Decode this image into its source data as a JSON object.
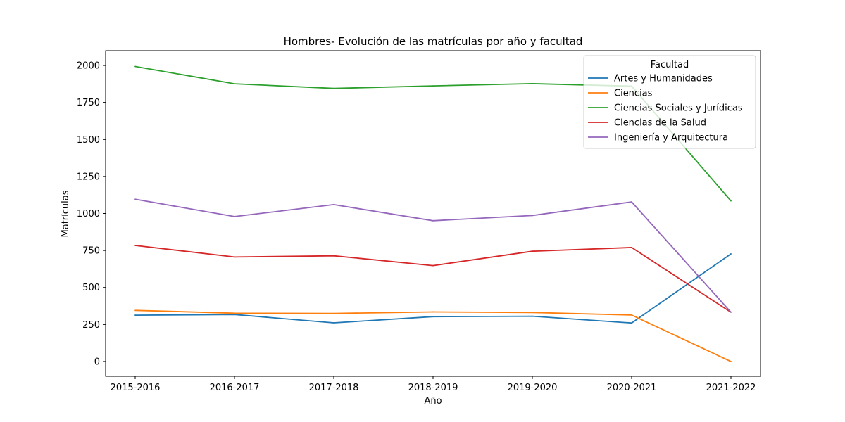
{
  "chart_data": {
    "type": "line",
    "title": "Hombres- Evolución de las matrículas por año y facultad",
    "xlabel": "Año",
    "ylabel": "Matrículas",
    "categories": [
      "2015-2016",
      "2016-2017",
      "2017-2018",
      "2018-2019",
      "2019-2020",
      "2020-2021",
      "2021-2022"
    ],
    "ylim": [
      -100,
      2100
    ],
    "yticks": [
      0,
      250,
      500,
      750,
      1000,
      1250,
      1500,
      1750,
      2000
    ],
    "grid": false,
    "legend": {
      "title": "Facultad",
      "placement": "top-right"
    },
    "series": [
      {
        "name": "Artes y Humanidades",
        "color": "#1f77b4",
        "values": [
          313,
          317,
          261,
          303,
          306,
          260,
          727
        ]
      },
      {
        "name": "Ciencias",
        "color": "#ff7f0e",
        "values": [
          345,
          326,
          325,
          335,
          331,
          314,
          0
        ]
      },
      {
        "name": "Ciencias Sociales y Jurídicas",
        "color": "#2ca02c",
        "values": [
          1993,
          1876,
          1845,
          1862,
          1877,
          1860,
          1085
        ]
      },
      {
        "name": "Ciencias de la Salud",
        "color": "#d62728",
        "values": [
          784,
          706,
          714,
          648,
          745,
          770,
          333
        ]
      },
      {
        "name": "Ingeniería y Arquitectura",
        "color": "#9467bd",
        "values": [
          1096,
          979,
          1060,
          951,
          986,
          1078,
          333
        ]
      }
    ]
  }
}
